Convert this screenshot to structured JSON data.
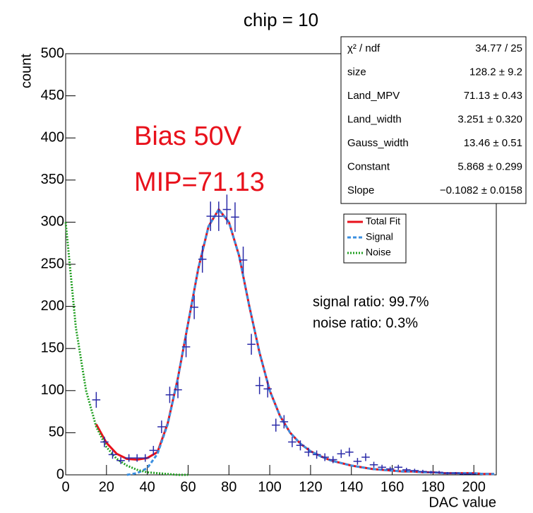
{
  "chart_data": {
    "type": "errorbar",
    "title": "chip =  10",
    "x_label": "DAC value",
    "y_label": "count",
    "xlim": [
      0,
      211
    ],
    "ylim": [
      0,
      500
    ],
    "xticks": [
      0,
      20,
      40,
      60,
      80,
      100,
      120,
      140,
      160,
      180,
      200
    ],
    "yticks": [
      0,
      50,
      100,
      150,
      200,
      250,
      300,
      350,
      400,
      450,
      500
    ],
    "points": {
      "color": "#2b2ba8",
      "bin_width": 4,
      "x": [
        15,
        19,
        23,
        27,
        31,
        35,
        39,
        43,
        47,
        51,
        55,
        59,
        63,
        67,
        71,
        75,
        79,
        83,
        87,
        91,
        95,
        99,
        103,
        107,
        111,
        115,
        119,
        123,
        127,
        131,
        135,
        139,
        143,
        147,
        151,
        155,
        159,
        163,
        167,
        171,
        175,
        179,
        183,
        187,
        191,
        195,
        199
      ],
      "values": [
        89,
        39,
        24,
        17,
        20,
        20,
        20,
        29,
        57,
        95,
        101,
        152,
        199,
        256,
        307,
        307,
        315,
        306,
        255,
        155,
        106,
        102,
        59,
        63,
        39,
        35,
        27,
        24,
        21,
        18,
        25,
        27,
        16,
        21,
        12,
        9,
        7,
        9,
        6,
        5,
        4,
        3,
        3,
        2,
        2,
        1,
        1
      ],
      "errors": [
        9.4,
        6.2,
        4.9,
        4.1,
        4.5,
        4.5,
        4.5,
        5.4,
        7.5,
        9.7,
        10,
        12.3,
        14.1,
        16,
        17.5,
        17.5,
        17.7,
        17.5,
        16,
        12.4,
        10.3,
        10.1,
        7.7,
        7.9,
        6.2,
        5.9,
        5.2,
        4.9,
        4.6,
        4.2,
        5,
        5.2,
        4,
        4.6,
        3.5,
        3,
        2.6,
        3,
        2.4,
        2.2,
        2,
        1.7,
        1.7,
        1.4,
        1.4,
        1,
        1
      ]
    },
    "series": [
      {
        "name": "Total Fit",
        "color": "#e8111b",
        "style": "solid",
        "x": [
          15,
          20,
          25,
          30,
          35,
          40,
          45,
          50,
          55,
          60,
          65,
          70,
          75,
          80,
          85,
          90,
          95,
          100,
          105,
          110,
          115,
          120,
          125,
          130,
          135,
          140,
          145,
          150,
          155,
          160,
          165,
          170,
          175,
          180,
          185,
          190,
          195,
          200,
          205,
          210
        ],
        "values": [
          60,
          38,
          25,
          19,
          18,
          20,
          27,
          61,
          115,
          180,
          245,
          295,
          315,
          300,
          260,
          200,
          145,
          100,
          70,
          50,
          37,
          28,
          22,
          17,
          14,
          11,
          9,
          7,
          6,
          5,
          4,
          4,
          3,
          3,
          2,
          2,
          2,
          2,
          1,
          1
        ]
      },
      {
        "name": "Signal",
        "color": "#3b8fe0",
        "style": "dashed",
        "x": [
          30,
          35,
          40,
          45,
          50,
          55,
          60,
          65,
          70,
          75,
          80,
          85,
          90,
          95,
          100,
          105,
          110,
          115,
          120,
          125,
          130,
          135,
          140,
          145,
          150,
          155,
          160,
          165,
          170,
          175,
          180,
          185,
          190,
          195,
          200,
          205,
          210
        ],
        "values": [
          0,
          2,
          8,
          25,
          60,
          115,
          180,
          245,
          295,
          315,
          300,
          260,
          200,
          145,
          100,
          70,
          50,
          37,
          28,
          22,
          17,
          14,
          11,
          9,
          7,
          6,
          5,
          4,
          4,
          3,
          3,
          2,
          2,
          2,
          2,
          1,
          1
        ]
      },
      {
        "name": "Noise",
        "color": "#22a022",
        "style": "dotted",
        "x": [
          0,
          5,
          10,
          15,
          20,
          25,
          30,
          35,
          40,
          45,
          50,
          55,
          60
        ],
        "values": [
          300,
          175,
          100,
          57,
          33,
          19,
          11,
          6,
          3,
          2,
          1,
          0,
          0
        ]
      }
    ],
    "stats": [
      {
        "label": "χ² / ndf",
        "value": "34.77 / 25"
      },
      {
        "label": "size",
        "value": "128.2 ± 9.2"
      },
      {
        "label": "Land_MPV",
        "value": "71.13 ± 0.43"
      },
      {
        "label": "Land_width",
        "value": "3.251 ± 0.320"
      },
      {
        "label": "Gauss_width",
        "value": "13.46 ± 0.51"
      },
      {
        "label": "Constant",
        "value": "5.868 ± 0.299"
      },
      {
        "label": "Slope",
        "value": "−0.1082 ± 0.0158"
      }
    ],
    "annotations": [
      {
        "text": "Bias 50V",
        "color": "#e8111b"
      },
      {
        "text": "MIP=71.13",
        "color": "#e8111b"
      },
      {
        "text": "signal ratio: 99.7%",
        "color": "#000000"
      },
      {
        "text": "noise ratio: 0.3%",
        "color": "#000000"
      }
    ]
  }
}
